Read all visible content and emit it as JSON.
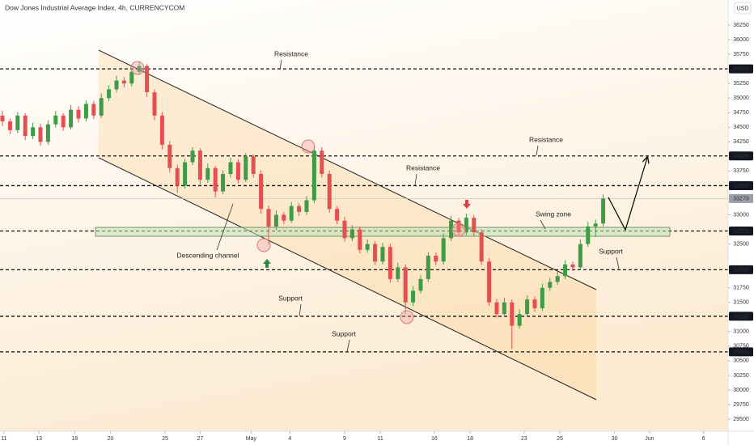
{
  "chart_data": {
    "type": "candlestick",
    "title": "Dow Jones Industrial Average Index, 4h, CURRENCYCOM",
    "currency": "USD",
    "up_color": "#3f9c46",
    "down_color": "#e3504f",
    "ylim": [
      29265,
      36680
    ],
    "yticks": [
      29500,
      29750,
      30000,
      30250,
      30500,
      30750,
      31000,
      31500,
      31750,
      32500,
      33000,
      33750,
      34250,
      34500,
      34750,
      35000,
      35250,
      35750,
      36000,
      36250
    ],
    "xlim": [
      -0.32,
      95.43
    ],
    "xticks": [
      {
        "value": 0.2,
        "label": "11"
      },
      {
        "value": 4.8,
        "label": "13"
      },
      {
        "value": 9.5,
        "label": "18"
      },
      {
        "value": 14.2,
        "label": "20"
      },
      {
        "value": 21.4,
        "label": "25"
      },
      {
        "value": 26,
        "label": "27"
      },
      {
        "value": 32.7,
        "label": "May"
      },
      {
        "value": 37.8,
        "label": "4"
      },
      {
        "value": 45,
        "label": "9"
      },
      {
        "value": 49.7,
        "label": "11"
      },
      {
        "value": 56.8,
        "label": "16"
      },
      {
        "value": 61.5,
        "label": "18"
      },
      {
        "value": 68.6,
        "label": "23"
      },
      {
        "value": 73.3,
        "label": "25"
      },
      {
        "value": 80.5,
        "label": "30"
      },
      {
        "value": 85.1,
        "label": "Jun"
      },
      {
        "value": 92.2,
        "label": "6"
      }
    ],
    "levels": [
      35500,
      34009,
      33500,
      32723,
      32060,
      31262,
      30653
    ],
    "last_price": 33279,
    "annotations": [
      "Resistance",
      "Resistance",
      "Resistance",
      "Swing zone",
      "Descending channel",
      "Support",
      "Support",
      "Support"
    ],
    "candles": [
      [
        34700,
        34780,
        34520,
        34600
      ],
      [
        34600,
        34650,
        34380,
        34450
      ],
      [
        34450,
        34760,
        34400,
        34700
      ],
      [
        34700,
        34740,
        34280,
        34350
      ],
      [
        34350,
        34580,
        34300,
        34500
      ],
      [
        34500,
        34560,
        34180,
        34250
      ],
      [
        34250,
        34620,
        34200,
        34550
      ],
      [
        34550,
        34780,
        34500,
        34700
      ],
      [
        34700,
        34740,
        34440,
        34500
      ],
      [
        34500,
        34880,
        34460,
        34800
      ],
      [
        34800,
        34860,
        34580,
        34650
      ],
      [
        34650,
        34960,
        34600,
        34900
      ],
      [
        34900,
        34950,
        34640,
        34700
      ],
      [
        34700,
        35080,
        34660,
        35000
      ],
      [
        35000,
        35220,
        34950,
        35150
      ],
      [
        35150,
        35380,
        35100,
        35300
      ],
      [
        35300,
        35360,
        35180,
        35250
      ],
      [
        35250,
        35520,
        35200,
        35450
      ],
      [
        35450,
        35620,
        35400,
        35550
      ],
      [
        35550,
        35580,
        35020,
        35100
      ],
      [
        35100,
        35150,
        34620,
        34700
      ],
      [
        34700,
        34760,
        34120,
        34200
      ],
      [
        34200,
        34260,
        33720,
        33800
      ],
      [
        33800,
        33860,
        33380,
        33500
      ],
      [
        33500,
        33960,
        33450,
        33900
      ],
      [
        33900,
        34160,
        33850,
        34100
      ],
      [
        34100,
        34140,
        33520,
        33600
      ],
      [
        33600,
        33880,
        33550,
        33800
      ],
      [
        33800,
        33840,
        33300,
        33400
      ],
      [
        33400,
        33760,
        33350,
        33700
      ],
      [
        33700,
        33980,
        33640,
        33900
      ],
      [
        33900,
        33950,
        33540,
        33600
      ],
      [
        33600,
        34060,
        33560,
        34000
      ],
      [
        34000,
        34040,
        33640,
        33700
      ],
      [
        33700,
        33760,
        33020,
        33100
      ],
      [
        33100,
        33160,
        32500,
        32800
      ],
      [
        32800,
        33080,
        32740,
        33000
      ],
      [
        33000,
        33050,
        32840,
        32900
      ],
      [
        32900,
        33220,
        32860,
        33150
      ],
      [
        33150,
        33200,
        32980,
        33050
      ],
      [
        33050,
        33320,
        33000,
        33250
      ],
      [
        33250,
        34180,
        33200,
        34100
      ],
      [
        34100,
        34160,
        33640,
        33700
      ],
      [
        33700,
        33760,
        33040,
        33100
      ],
      [
        33100,
        33150,
        32840,
        32900
      ],
      [
        32900,
        32960,
        32540,
        32600
      ],
      [
        32600,
        32820,
        32550,
        32750
      ],
      [
        32750,
        32800,
        32340,
        32400
      ],
      [
        32400,
        32580,
        32350,
        32500
      ],
      [
        32500,
        32550,
        32140,
        32200
      ],
      [
        32200,
        32520,
        32150,
        32450
      ],
      [
        32450,
        32500,
        31840,
        31900
      ],
      [
        31900,
        32180,
        31850,
        32100
      ],
      [
        32100,
        32150,
        31300,
        31500
      ],
      [
        31500,
        31780,
        31440,
        31700
      ],
      [
        31700,
        31960,
        31650,
        31900
      ],
      [
        31900,
        32360,
        31850,
        32300
      ],
      [
        32300,
        32350,
        32140,
        32200
      ],
      [
        32200,
        32680,
        32150,
        32600
      ],
      [
        32600,
        32980,
        32550,
        32900
      ],
      [
        32900,
        32950,
        32640,
        32700
      ],
      [
        32700,
        33020,
        32650,
        32950
      ],
      [
        32950,
        33000,
        32640,
        32700
      ],
      [
        32700,
        32750,
        32140,
        32200
      ],
      [
        32200,
        32260,
        31440,
        31500
      ],
      [
        31500,
        31560,
        31240,
        31300
      ],
      [
        31300,
        31580,
        31250,
        31500
      ],
      [
        31500,
        31550,
        30700,
        31100
      ],
      [
        31100,
        31380,
        31050,
        31300
      ],
      [
        31300,
        31620,
        31250,
        31550
      ],
      [
        31550,
        31600,
        31340,
        31400
      ],
      [
        31400,
        31820,
        31350,
        31750
      ],
      [
        31750,
        31920,
        31700,
        31850
      ],
      [
        31850,
        32020,
        31800,
        31950
      ],
      [
        31950,
        32220,
        31900,
        32150
      ],
      [
        32150,
        32200,
        32040,
        32100
      ],
      [
        32100,
        32580,
        32050,
        32500
      ],
      [
        32500,
        32880,
        32450,
        32800
      ],
      [
        32800,
        32920,
        32620,
        32850
      ],
      [
        32850,
        33350,
        32800,
        33279
      ]
    ]
  }
}
